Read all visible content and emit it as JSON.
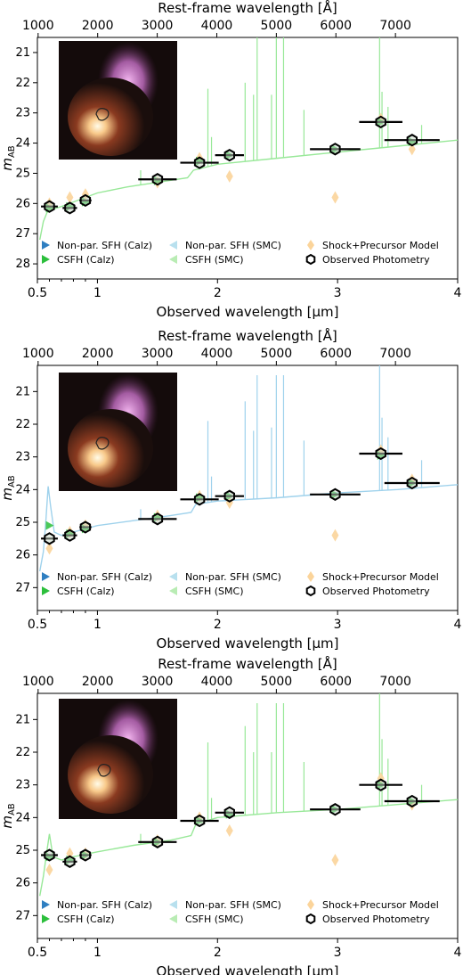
{
  "chart_data": [
    {
      "type": "scatter",
      "xlabel": "Observed wavelength [μm]",
      "x2label": "Rest-frame wavelength [Å]",
      "ylabel": "m_AB",
      "xlim": [
        0.5,
        4.0
      ],
      "ylim": [
        28.5,
        20.5
      ],
      "x2_ticks": [
        "1000",
        "2000",
        "3000",
        "4000",
        "5000",
        "6000",
        "7000"
      ],
      "x_ticks": [
        "0.5",
        "1",
        "2",
        "3",
        "4"
      ],
      "y_ticks": [
        "21",
        "22",
        "23",
        "24",
        "25",
        "26",
        "27",
        "28"
      ],
      "model_color": "#98e898",
      "legend": [
        "Non-par. SFH (Calz)",
        "CSFH (Calz)",
        "Non-par. SFH (SMC)",
        "CSFH (SMC)",
        "Shock+Precursor Model",
        "Observed Photometry"
      ],
      "photometry": [
        {
          "x": 0.6,
          "y": 26.1,
          "xerr": 0.07
        },
        {
          "x": 0.77,
          "y": 26.15,
          "xerr": 0.06
        },
        {
          "x": 0.9,
          "y": 25.9,
          "xerr": 0.05
        },
        {
          "x": 1.5,
          "y": 25.2,
          "xerr": 0.16
        },
        {
          "x": 1.85,
          "y": 24.65,
          "xerr": 0.16
        },
        {
          "x": 2.1,
          "y": 24.4,
          "xerr": 0.12
        },
        {
          "x": 2.98,
          "y": 24.2,
          "xerr": 0.21
        },
        {
          "x": 3.36,
          "y": 23.3,
          "xerr": 0.18
        },
        {
          "x": 3.62,
          "y": 23.9,
          "xerr": 0.23
        }
      ],
      "shock_model": [
        {
          "x": 0.6,
          "y": 26.0
        },
        {
          "x": 0.77,
          "y": 25.8
        },
        {
          "x": 0.9,
          "y": 25.7
        },
        {
          "x": 1.5,
          "y": 25.3
        },
        {
          "x": 1.85,
          "y": 24.5
        },
        {
          "x": 2.1,
          "y": 25.1
        },
        {
          "x": 2.98,
          "y": 25.8
        },
        {
          "x": 3.36,
          "y": 23.2
        },
        {
          "x": 3.62,
          "y": 24.2
        }
      ],
      "sed_points": [
        {
          "x": 0.6,
          "y": 26.15
        },
        {
          "x": 0.77,
          "y": 26.1
        },
        {
          "x": 0.9,
          "y": 25.95
        },
        {
          "x": 1.5,
          "y": 25.25
        },
        {
          "x": 1.85,
          "y": 24.6
        },
        {
          "x": 2.1,
          "y": 24.4
        },
        {
          "x": 2.98,
          "y": 24.2
        },
        {
          "x": 3.36,
          "y": 23.3
        },
        {
          "x": 3.62,
          "y": 23.95
        }
      ],
      "continuum": [
        {
          "x": 0.52,
          "y": 27.2
        },
        {
          "x": 0.55,
          "y": 26.6
        },
        {
          "x": 0.58,
          "y": 26.3
        },
        {
          "x": 0.62,
          "y": 26.2
        },
        {
          "x": 0.7,
          "y": 26.1
        },
        {
          "x": 0.8,
          "y": 25.95
        },
        {
          "x": 1.0,
          "y": 25.65
        },
        {
          "x": 1.25,
          "y": 25.45
        },
        {
          "x": 1.5,
          "y": 25.3
        },
        {
          "x": 1.75,
          "y": 25.15
        },
        {
          "x": 1.8,
          "y": 24.9
        },
        {
          "x": 2.0,
          "y": 24.7
        },
        {
          "x": 2.5,
          "y": 24.5
        },
        {
          "x": 3.0,
          "y": 24.3
        },
        {
          "x": 3.5,
          "y": 24.1
        },
        {
          "x": 4.0,
          "y": 23.9
        }
      ],
      "emission_lines": [
        {
          "x": 1.36,
          "y": 24.9
        },
        {
          "x": 1.92,
          "y": 22.2
        },
        {
          "x": 1.95,
          "y": 23.8
        },
        {
          "x": 2.23,
          "y": 22.0
        },
        {
          "x": 2.3,
          "y": 22.4
        },
        {
          "x": 2.33,
          "y": 20.5
        },
        {
          "x": 2.45,
          "y": 22.4
        },
        {
          "x": 2.49,
          "y": 20.5
        },
        {
          "x": 2.55,
          "y": 20.5
        },
        {
          "x": 2.72,
          "y": 22.9
        },
        {
          "x": 3.35,
          "y": 20.5
        },
        {
          "x": 3.37,
          "y": 22.3
        },
        {
          "x": 3.42,
          "y": 22.8
        },
        {
          "x": 3.7,
          "y": 23.4
        }
      ]
    },
    {
      "type": "scatter",
      "xlabel": "Observed wavelength [μm]",
      "x2label": "Rest-frame wavelength [Å]",
      "ylabel": "m_AB",
      "xlim": [
        0.5,
        4.0
      ],
      "ylim": [
        27.7,
        20.2
      ],
      "x2_ticks": [
        "1000",
        "2000",
        "3000",
        "4000",
        "5000",
        "6000",
        "7000"
      ],
      "x_ticks": [
        "0.5",
        "1",
        "2",
        "3",
        "4"
      ],
      "y_ticks": [
        "21",
        "22",
        "23",
        "24",
        "25",
        "26",
        "27"
      ],
      "model_color": "#9fd2ec",
      "legend": [
        "Non-par. SFH (Calz)",
        "CSFH (Calz)",
        "Non-par. SFH (SMC)",
        "CSFH (SMC)",
        "Shock+Precursor Model",
        "Observed Photometry"
      ],
      "photometry": [
        {
          "x": 0.6,
          "y": 25.5,
          "xerr": 0.07
        },
        {
          "x": 0.77,
          "y": 25.4,
          "xerr": 0.06
        },
        {
          "x": 0.9,
          "y": 25.15,
          "xerr": 0.05
        },
        {
          "x": 1.5,
          "y": 24.9,
          "xerr": 0.16
        },
        {
          "x": 1.85,
          "y": 24.3,
          "xerr": 0.16
        },
        {
          "x": 2.1,
          "y": 24.2,
          "xerr": 0.12
        },
        {
          "x": 2.98,
          "y": 24.15,
          "xerr": 0.21
        },
        {
          "x": 3.36,
          "y": 22.9,
          "xerr": 0.18
        },
        {
          "x": 3.62,
          "y": 23.8,
          "xerr": 0.23
        }
      ],
      "shock_model": [
        {
          "x": 0.6,
          "y": 25.8
        },
        {
          "x": 0.77,
          "y": 25.3
        },
        {
          "x": 0.9,
          "y": 25.1
        },
        {
          "x": 1.5,
          "y": 24.8
        },
        {
          "x": 1.85,
          "y": 24.2
        },
        {
          "x": 2.1,
          "y": 24.4
        },
        {
          "x": 2.98,
          "y": 25.4
        },
        {
          "x": 3.36,
          "y": 22.8
        },
        {
          "x": 3.62,
          "y": 23.7
        }
      ],
      "sed_points": [
        {
          "x": 0.6,
          "y": 25.1
        },
        {
          "x": 0.77,
          "y": 25.35
        },
        {
          "x": 0.9,
          "y": 25.2
        },
        {
          "x": 1.5,
          "y": 24.85
        },
        {
          "x": 1.85,
          "y": 24.25
        },
        {
          "x": 2.1,
          "y": 24.2
        },
        {
          "x": 2.98,
          "y": 24.15
        },
        {
          "x": 3.36,
          "y": 22.95
        },
        {
          "x": 3.62,
          "y": 23.8
        }
      ],
      "continuum": [
        {
          "x": 0.52,
          "y": 26.5
        },
        {
          "x": 0.55,
          "y": 25.9
        },
        {
          "x": 0.57,
          "y": 25.0
        },
        {
          "x": 0.59,
          "y": 23.9
        },
        {
          "x": 0.61,
          "y": 24.5
        },
        {
          "x": 0.64,
          "y": 25.3
        },
        {
          "x": 0.7,
          "y": 25.4
        },
        {
          "x": 0.8,
          "y": 25.3
        },
        {
          "x": 1.0,
          "y": 25.1
        },
        {
          "x": 1.3,
          "y": 24.95
        },
        {
          "x": 1.6,
          "y": 24.8
        },
        {
          "x": 1.78,
          "y": 24.7
        },
        {
          "x": 1.82,
          "y": 24.45
        },
        {
          "x": 2.0,
          "y": 24.35
        },
        {
          "x": 2.5,
          "y": 24.25
        },
        {
          "x": 3.0,
          "y": 24.1
        },
        {
          "x": 3.5,
          "y": 24.0
        },
        {
          "x": 4.0,
          "y": 23.85
        }
      ],
      "emission_lines": [
        {
          "x": 1.36,
          "y": 24.6
        },
        {
          "x": 1.92,
          "y": 21.9
        },
        {
          "x": 1.95,
          "y": 23.6
        },
        {
          "x": 2.23,
          "y": 21.3
        },
        {
          "x": 2.3,
          "y": 22.2
        },
        {
          "x": 2.33,
          "y": 20.5
        },
        {
          "x": 2.45,
          "y": 22.1
        },
        {
          "x": 2.49,
          "y": 20.5
        },
        {
          "x": 2.55,
          "y": 20.5
        },
        {
          "x": 2.72,
          "y": 22.5
        },
        {
          "x": 3.35,
          "y": 20.2
        },
        {
          "x": 3.37,
          "y": 21.8
        },
        {
          "x": 3.42,
          "y": 22.4
        },
        {
          "x": 3.7,
          "y": 23.1
        }
      ]
    },
    {
      "type": "scatter",
      "xlabel": "Observed wavelength [μm]",
      "x2label": "Rest-frame wavelength [Å]",
      "ylabel": "m_AB",
      "xlim": [
        0.5,
        4.0
      ],
      "ylim": [
        27.7,
        20.2
      ],
      "x2_ticks": [
        "1000",
        "2000",
        "3000",
        "4000",
        "5000",
        "6000",
        "7000"
      ],
      "x_ticks": [
        "0.5",
        "1",
        "2",
        "3",
        "4"
      ],
      "y_ticks": [
        "21",
        "22",
        "23",
        "24",
        "25",
        "26",
        "27"
      ],
      "model_color": "#98e898",
      "legend": [
        "Non-par. SFH (Calz)",
        "CSFH (Calz)",
        "Non-par. SFH (SMC)",
        "CSFH (SMC)",
        "Shock+Precursor Model",
        "Observed Photometry"
      ],
      "photometry": [
        {
          "x": 0.6,
          "y": 25.15,
          "xerr": 0.07
        },
        {
          "x": 0.77,
          "y": 25.35,
          "xerr": 0.06
        },
        {
          "x": 0.9,
          "y": 25.15,
          "xerr": 0.05
        },
        {
          "x": 1.5,
          "y": 24.75,
          "xerr": 0.16
        },
        {
          "x": 1.85,
          "y": 24.1,
          "xerr": 0.16
        },
        {
          "x": 2.1,
          "y": 23.85,
          "xerr": 0.12
        },
        {
          "x": 2.98,
          "y": 23.75,
          "xerr": 0.21
        },
        {
          "x": 3.36,
          "y": 23.0,
          "xerr": 0.18
        },
        {
          "x": 3.62,
          "y": 23.5,
          "xerr": 0.23
        }
      ],
      "shock_model": [
        {
          "x": 0.6,
          "y": 25.6
        },
        {
          "x": 0.77,
          "y": 25.1
        },
        {
          "x": 0.9,
          "y": 25.1
        },
        {
          "x": 1.5,
          "y": 24.7
        },
        {
          "x": 1.85,
          "y": 24.0
        },
        {
          "x": 2.1,
          "y": 24.4
        },
        {
          "x": 2.98,
          "y": 25.3
        },
        {
          "x": 3.36,
          "y": 22.8
        },
        {
          "x": 3.62,
          "y": 23.6
        }
      ],
      "sed_points": [
        {
          "x": 0.6,
          "y": 25.2
        },
        {
          "x": 0.77,
          "y": 25.3
        },
        {
          "x": 0.9,
          "y": 25.15
        },
        {
          "x": 1.5,
          "y": 24.75
        },
        {
          "x": 1.85,
          "y": 24.1
        },
        {
          "x": 2.1,
          "y": 23.9
        },
        {
          "x": 2.98,
          "y": 23.75
        },
        {
          "x": 3.36,
          "y": 23.0
        },
        {
          "x": 3.62,
          "y": 23.5
        }
      ],
      "continuum": [
        {
          "x": 0.52,
          "y": 26.4
        },
        {
          "x": 0.55,
          "y": 25.8
        },
        {
          "x": 0.58,
          "y": 25.0
        },
        {
          "x": 0.6,
          "y": 24.5
        },
        {
          "x": 0.63,
          "y": 25.2
        },
        {
          "x": 0.7,
          "y": 25.3
        },
        {
          "x": 0.8,
          "y": 25.2
        },
        {
          "x": 1.0,
          "y": 25.05
        },
        {
          "x": 1.3,
          "y": 24.85
        },
        {
          "x": 1.6,
          "y": 24.7
        },
        {
          "x": 1.78,
          "y": 24.55
        },
        {
          "x": 1.82,
          "y": 24.2
        },
        {
          "x": 2.0,
          "y": 24.0
        },
        {
          "x": 2.5,
          "y": 23.85
        },
        {
          "x": 3.0,
          "y": 23.75
        },
        {
          "x": 3.5,
          "y": 23.6
        },
        {
          "x": 4.0,
          "y": 23.45
        }
      ],
      "emission_lines": [
        {
          "x": 1.36,
          "y": 24.5
        },
        {
          "x": 1.92,
          "y": 21.7
        },
        {
          "x": 1.95,
          "y": 23.4
        },
        {
          "x": 2.23,
          "y": 21.2
        },
        {
          "x": 2.3,
          "y": 22.0
        },
        {
          "x": 2.33,
          "y": 20.5
        },
        {
          "x": 2.45,
          "y": 22.0
        },
        {
          "x": 2.49,
          "y": 20.5
        },
        {
          "x": 2.55,
          "y": 20.5
        },
        {
          "x": 2.72,
          "y": 22.3
        },
        {
          "x": 3.35,
          "y": 20.2
        },
        {
          "x": 3.37,
          "y": 21.6
        },
        {
          "x": 3.42,
          "y": 22.2
        },
        {
          "x": 3.7,
          "y": 23.0
        }
      ]
    }
  ],
  "colors": {
    "nonpar_calz": "#2f7fc1",
    "csfh_calz": "#2cbf3c",
    "nonpar_smc": "#b8e0ee",
    "csfh_smc": "#b9ecb4",
    "shock": "#fbd49a",
    "photometry": "#000000"
  }
}
